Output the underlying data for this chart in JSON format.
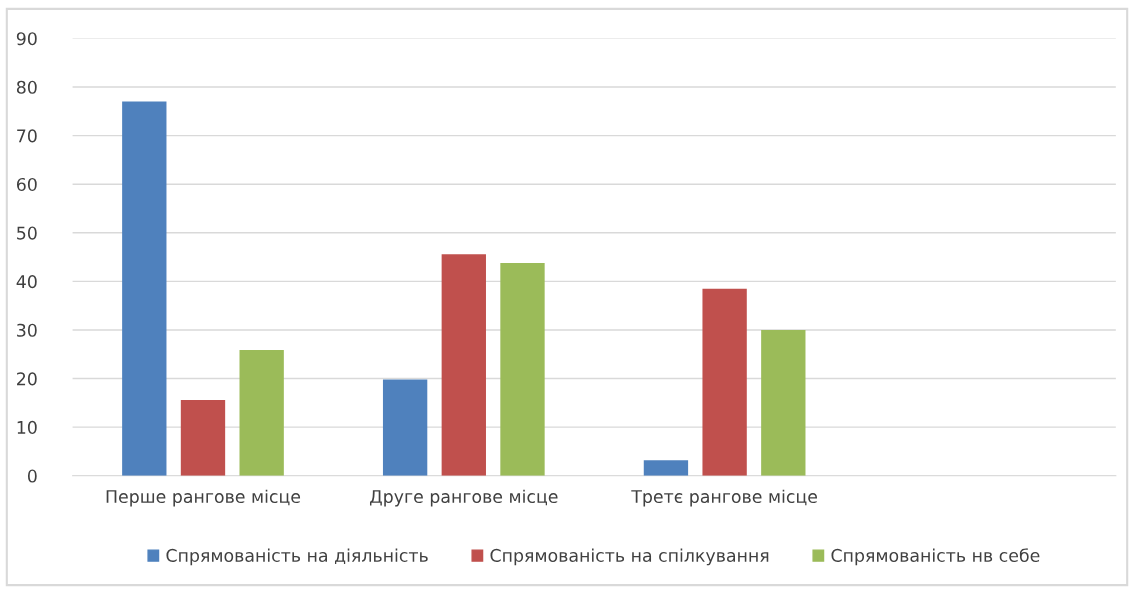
{
  "chart_data": {
    "type": "bar",
    "categories": [
      "Перше рангове місце",
      "Друге рангове місце",
      "Третє рангове місце",
      null
    ],
    "series": [
      {
        "name": "Спрямованість на діяльність",
        "color": "#4f81bd",
        "values": [
          77,
          19.8,
          3.2,
          null
        ]
      },
      {
        "name": "Спрямованість на спілкування",
        "color": "#c0504d",
        "values": [
          15.6,
          45.6,
          38.5,
          null
        ]
      },
      {
        "name": "Спрямованість нв себе",
        "color": "#9bbb59",
        "values": [
          25.9,
          43.8,
          30,
          null
        ]
      }
    ],
    "ylim": [
      0,
      90
    ],
    "yticks": [
      0,
      10,
      20,
      30,
      40,
      50,
      60,
      70,
      80,
      90
    ],
    "grid": "y",
    "legend": "bottom"
  }
}
